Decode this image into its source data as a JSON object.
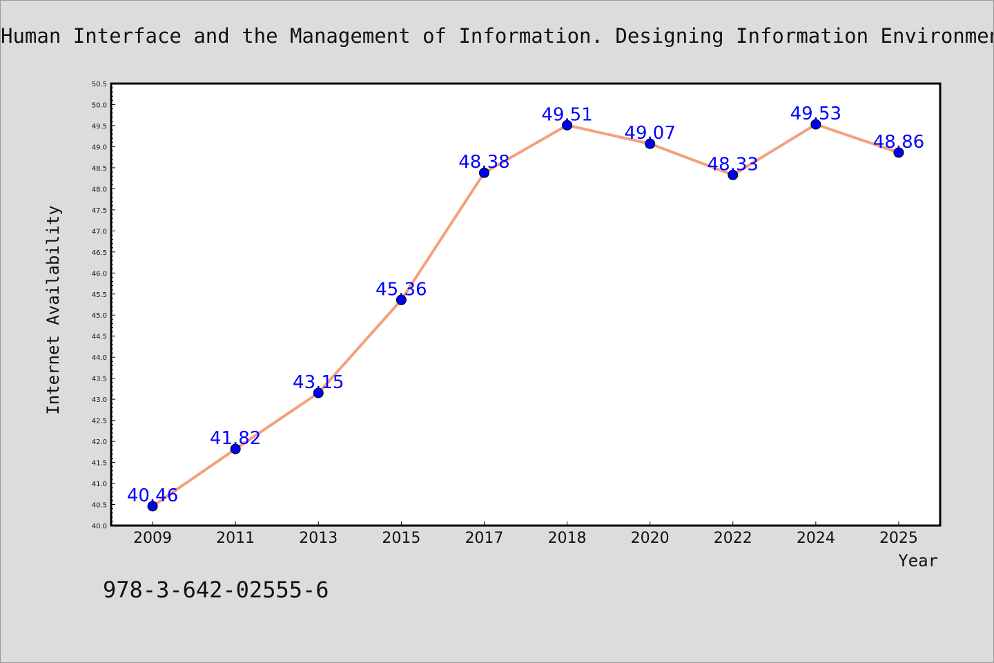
{
  "footer": {
    "isbn": "978-3-642-02555-6"
  },
  "colors": {
    "line": "#f4a07e",
    "marker": "#0000ee",
    "data_label": "#0000ff",
    "plot_bg": "#ffffff",
    "figure_bg": "#dcdcdc"
  },
  "chart_data": {
    "type": "line",
    "title": "Human Interface and the Management of Information. Designing Information Environments",
    "xlabel": "Year",
    "ylabel": "Internet Availability",
    "categories": [
      "2009",
      "2011",
      "2013",
      "2015",
      "2017",
      "2018",
      "2020",
      "2022",
      "2024",
      "2025"
    ],
    "series": [
      {
        "values": [
          40.46,
          41.82,
          43.15,
          45.36,
          48.38,
          49.51,
          49.07,
          48.33,
          49.53,
          48.86
        ]
      }
    ],
    "data_labels": [
      "40.46",
      "41.82",
      "43.15",
      "45.36",
      "48.38",
      "49.51",
      "49.07",
      "48.33",
      "49.53",
      "48.86"
    ],
    "ylim": [
      40.0,
      50.5
    ],
    "yticks": [
      "40.0",
      "40.5",
      "41.0",
      "41.5",
      "42.0",
      "42.5",
      "43.0",
      "43.5",
      "44.0",
      "44.5",
      "45.0",
      "45.5",
      "46.0",
      "46.5",
      "47.0",
      "47.5",
      "48.0",
      "48.5",
      "49.0",
      "49.5",
      "50.0",
      "50.5"
    ],
    "grid": false,
    "legend": "none"
  }
}
